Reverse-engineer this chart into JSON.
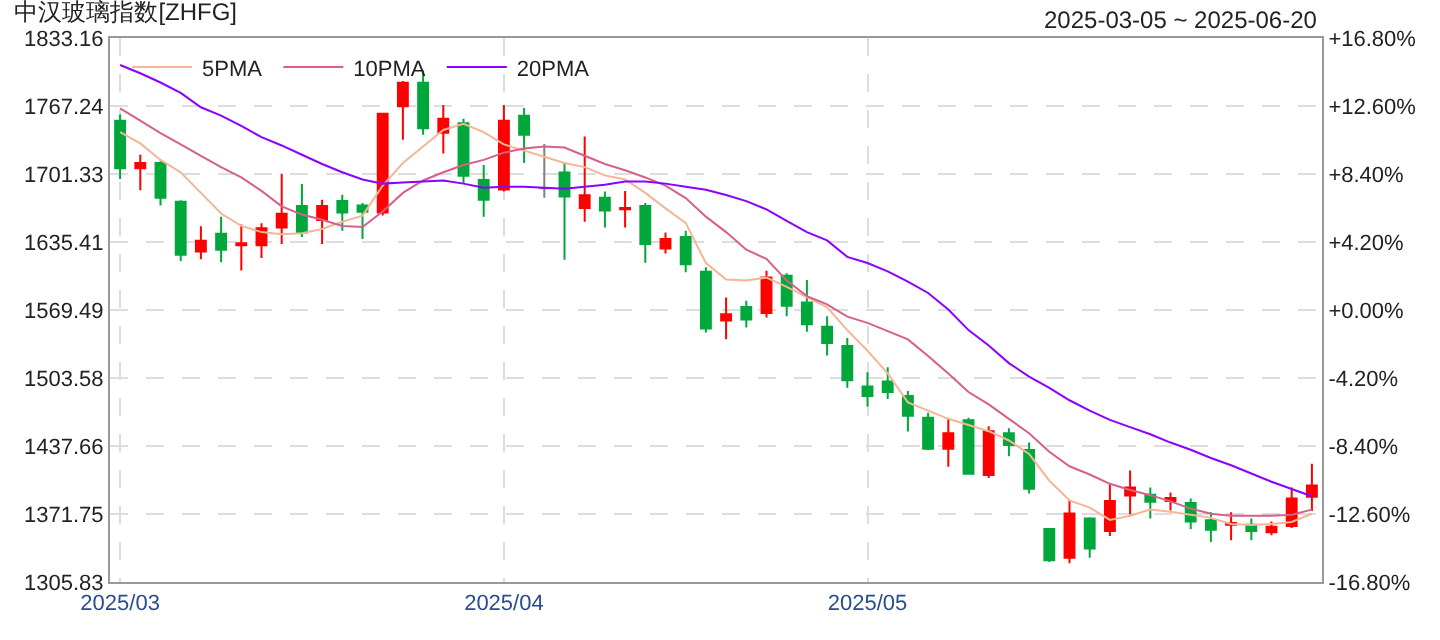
{
  "chart_data": {
    "type": "candlestick",
    "title": "中汉玻璃指数[ZHFG]",
    "subtitle": "2025-03-05 ~ 2025-06-20",
    "categories": [
      "2025/03",
      null,
      null,
      null,
      null,
      null,
      null,
      null,
      null,
      null,
      null,
      null,
      null,
      null,
      null,
      null,
      null,
      null,
      null,
      "2025/04",
      null,
      null,
      null,
      null,
      null,
      null,
      null,
      null,
      null,
      null,
      null,
      null,
      null,
      null,
      null,
      null,
      null,
      "2025/05",
      null,
      null,
      null,
      null,
      null,
      null,
      null,
      null,
      null,
      null,
      null,
      null,
      null,
      null,
      null,
      null,
      null,
      null,
      null,
      null,
      null,
      null
    ],
    "ohlc": [
      [
        1752.9,
        1759.1,
        1696.6,
        1707.0
      ],
      [
        1707.0,
        1719.9,
        1685.6,
        1711.9
      ],
      [
        1711.9,
        1713.8,
        1670.9,
        1678.2
      ],
      [
        1674.5,
        1675.8,
        1617.0,
        1623.1
      ],
      [
        1626.2,
        1650.7,
        1618.8,
        1636.6
      ],
      [
        1643.3,
        1659.9,
        1615.8,
        1628.0
      ],
      [
        1632.3,
        1652.5,
        1607.8,
        1634.1
      ],
      [
        1632.3,
        1653.7,
        1620.0,
        1648.8
      ],
      [
        1649.4,
        1701.5,
        1633.5,
        1662.9
      ],
      [
        1670.3,
        1691.7,
        1640.3,
        1644.5
      ],
      [
        1656.8,
        1676.4,
        1633.5,
        1670.3
      ],
      [
        1675.2,
        1681.3,
        1646.4,
        1664.1
      ],
      [
        1670.9,
        1673.3,
        1638.4,
        1664.7
      ],
      [
        1664.1,
        1759.7,
        1661.1,
        1759.7
      ],
      [
        1767.0,
        1791.5,
        1734.6,
        1789.7
      ],
      [
        1789.7,
        1801.9,
        1739.4,
        1745.6
      ],
      [
        1741.3,
        1768.2,
        1721.1,
        1754.8
      ],
      [
        1750.5,
        1754.8,
        1691.7,
        1699.7
      ],
      [
        1695.4,
        1710.1,
        1659.9,
        1676.4
      ],
      [
        1686.2,
        1768.2,
        1684.3,
        1752.9
      ],
      [
        1757.8,
        1765.2,
        1711.9,
        1739.4
      ],
      [
        1687.4,
        1730.3,
        1678.2,
        1687.4
      ],
      [
        1702.7,
        1711.9,
        1618.2,
        1679.5
      ],
      [
        1668.4,
        1737.6,
        1655.0,
        1680.7
      ],
      [
        1678.2,
        1684.3,
        1649.4,
        1665.9
      ],
      [
        1667.2,
        1684.9,
        1649.4,
        1668.4
      ],
      [
        1670.3,
        1673.3,
        1615.2,
        1633.5
      ],
      [
        1629.2,
        1644.5,
        1624.3,
        1638.4
      ],
      [
        1640.3,
        1646.4,
        1606.0,
        1613.9
      ],
      [
        1606.6,
        1610.9,
        1547.8,
        1551.5
      ],
      [
        1559.2,
        1581.6,
        1541.1,
        1565.3
      ],
      [
        1572.5,
        1578.5,
        1552.6,
        1560.4
      ],
      [
        1566.5,
        1607.5,
        1562.3,
        1600.9
      ],
      [
        1602.7,
        1605.1,
        1563.5,
        1573.7
      ],
      [
        1576.7,
        1598.5,
        1548.4,
        1555.6
      ],
      [
        1553.2,
        1563.5,
        1525.5,
        1537.5
      ],
      [
        1534.5,
        1542.4,
        1494.1,
        1501.3
      ],
      [
        1495.3,
        1509.2,
        1476.0,
        1486.2
      ],
      [
        1500.1,
        1514.0,
        1483.2,
        1489.9
      ],
      [
        1486.2,
        1491.1,
        1451.8,
        1466.9
      ],
      [
        1465.1,
        1469.9,
        1433.7,
        1434.9
      ],
      [
        1434.9,
        1463.9,
        1417.5,
        1450.0
      ],
      [
        1462.7,
        1465.1,
        1410.8,
        1410.8
      ],
      [
        1409.6,
        1456.7,
        1406.6,
        1451.9
      ],
      [
        1450.0,
        1454.9,
        1427.7,
        1438.6
      ],
      [
        1433.7,
        1441.0,
        1391.5,
        1396.3
      ],
      [
        1357.1,
        1358.3,
        1325.2,
        1327.0
      ],
      [
        1329.4,
        1384.3,
        1324.0,
        1372.2
      ],
      [
        1367.4,
        1368.6,
        1329.4,
        1338.4
      ],
      [
        1355.3,
        1400.6,
        1350.5,
        1384.3
      ],
      [
        1389.7,
        1413.8,
        1371.6,
        1397.5
      ],
      [
        1390.3,
        1397.5,
        1367.4,
        1383.7
      ],
      [
        1384.3,
        1392.7,
        1375.2,
        1387.3
      ],
      [
        1382.5,
        1386.7,
        1357.1,
        1364.4
      ],
      [
        1365.6,
        1373.4,
        1344.5,
        1356.5
      ],
      [
        1361.3,
        1373.4,
        1346.3,
        1363.1
      ],
      [
        1361.3,
        1367.4,
        1346.3,
        1355.3
      ],
      [
        1354.1,
        1364.4,
        1351.1,
        1359.5
      ],
      [
        1360.1,
        1397.5,
        1358.3,
        1386.7
      ],
      [
        1388.5,
        1420.5,
        1374.6,
        1399.4
      ]
    ],
    "colors": [
      "#00a83c",
      "#ff0000",
      "#00a83c",
      "#00a83c",
      "#ff0000",
      "#00a83c",
      "#ff0000",
      "#ff0000",
      "#ff0000",
      "#00a83c",
      "#ff0000",
      "#00a83c",
      "#00a83c",
      "#ff0000",
      "#ff0000",
      "#00a83c",
      "#ff0000",
      "#00a83c",
      "#00a83c",
      "#ff0000",
      "#00a83c",
      "#808080",
      "#00a83c",
      "#ff0000",
      "#00a83c",
      "#ff0000",
      "#00a83c",
      "#ff0000",
      "#00a83c",
      "#00a83c",
      "#ff0000",
      "#00a83c",
      "#ff0000",
      "#00a83c",
      "#00a83c",
      "#00a83c",
      "#00a83c",
      "#00a83c",
      "#00a83c",
      "#00a83c",
      "#00a83c",
      "#ff0000",
      "#00a83c",
      "#ff0000",
      "#00a83c",
      "#00a83c",
      "#00a83c",
      "#ff0000",
      "#00a83c",
      "#ff0000",
      "#ff0000",
      "#00a83c",
      "#ff0000",
      "#00a83c",
      "#00a83c",
      "#ff0000",
      "#00a83c",
      "#ff0000",
      "#ff0000",
      "#ff0000"
    ],
    "series": [
      {
        "name": "5PMA",
        "type": "line",
        "color": "#f5b596",
        "values": [
          1742,
          1731,
          1715,
          1703,
          1683,
          1663,
          1651,
          1645,
          1643,
          1644,
          1648,
          1655,
          1661,
          1690,
          1712,
          1728,
          1744,
          1750,
          1742,
          1730,
          1724,
          1718,
          1712,
          1708,
          1700,
          1696,
          1683,
          1668,
          1654,
          1615,
          1599,
          1598,
          1601,
          1592,
          1582,
          1572,
          1550,
          1530,
          1508,
          1480,
          1472,
          1464,
          1458,
          1452,
          1443,
          1430,
          1404,
          1385,
          1378,
          1366,
          1370,
          1376,
          1374,
          1371,
          1368,
          1362,
          1361,
          1362,
          1364,
          1372
        ]
      },
      {
        "name": "10PMA",
        "type": "line",
        "color": "#d6608a",
        "values": [
          1765,
          1753,
          1741,
          1730,
          1719,
          1708,
          1698,
          1685,
          1670,
          1662,
          1657,
          1651,
          1650,
          1665,
          1683,
          1695,
          1703,
          1710,
          1715,
          1722,
          1726,
          1728,
          1727,
          1719,
          1711,
          1705,
          1698,
          1690,
          1678,
          1660,
          1645,
          1628,
          1619,
          1598,
          1583,
          1575,
          1563,
          1557,
          1549,
          1541,
          1525,
          1508,
          1490,
          1478,
          1464,
          1450,
          1432,
          1418,
          1410,
          1401,
          1395,
          1390,
          1384,
          1377,
          1372,
          1370,
          1370,
          1370,
          1371,
          1376
        ]
      },
      {
        "name": "20PMA",
        "type": "line",
        "color": "#8b00ff",
        "values": [
          1807,
          1799,
          1790,
          1780,
          1766,
          1758,
          1748,
          1737,
          1729,
          1720,
          1711,
          1703,
          1696,
          1692,
          1693,
          1694,
          1695,
          1692,
          1688,
          1689,
          1689,
          1688,
          1687,
          1689,
          1691,
          1694,
          1694,
          1692,
          1689,
          1686,
          1681,
          1675,
          1667,
          1656,
          1645,
          1637,
          1621,
          1615,
          1607,
          1597,
          1586,
          1570,
          1550,
          1535,
          1518,
          1505,
          1494,
          1482,
          1472,
          1463,
          1456,
          1449,
          1441,
          1434,
          1426,
          1419,
          1411,
          1403,
          1396,
          1389
        ]
      }
    ],
    "ylim": [
      1305.83,
      1833.16
    ],
    "yticks": [
      1305.83,
      1371.75,
      1437.66,
      1503.58,
      1569.49,
      1635.41,
      1701.33,
      1767.24,
      1833.16
    ],
    "y2lim": [
      -16.8,
      16.8
    ],
    "y2ticks": [
      {
        "value": -16.8,
        "label": "-16.80%"
      },
      {
        "value": -12.6,
        "label": "-12.60%"
      },
      {
        "value": -8.4,
        "label": "-8.40%"
      },
      {
        "value": -4.2,
        "label": "-4.20%"
      },
      {
        "value": 0,
        "label": "+0.00%"
      },
      {
        "value": 4.2,
        "label": "+4.20%"
      },
      {
        "value": 8.4,
        "label": "+8.40%"
      },
      {
        "value": 12.6,
        "label": "+12.60%"
      },
      {
        "value": 16.8,
        "label": "+16.80%"
      }
    ],
    "grid": true,
    "legend": "top left",
    "marker": "none",
    "line_style": "solid"
  }
}
